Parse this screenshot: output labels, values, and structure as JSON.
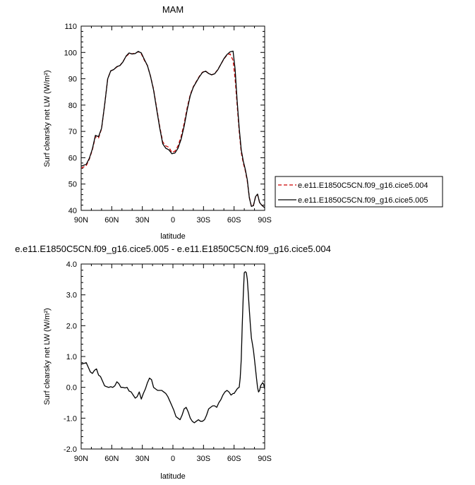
{
  "chart_data": [
    {
      "type": "line",
      "title": "MAM",
      "xlabel": "latitude",
      "ylabel": "Surf clearsky net LW (W/m²)",
      "xlim": [
        90,
        -90
      ],
      "ylim": [
        40,
        110
      ],
      "xticks": [
        90,
        60,
        30,
        0,
        -30,
        -60,
        -90
      ],
      "xtick_labels": [
        "90N",
        "60N",
        "30N",
        "0",
        "30S",
        "60S",
        "90S"
      ],
      "yticks": [
        40,
        50,
        60,
        70,
        80,
        90,
        100,
        110
      ],
      "ytick_labels": [
        "40",
        "50",
        "60",
        "70",
        "80",
        "90",
        "100",
        "110"
      ],
      "grid": false,
      "legend_position": "right",
      "series": [
        {
          "name": "e.e11.E1850C5CN.f09_g16.cice5.004",
          "color": "#cc0000",
          "dash": "dashed",
          "x": [
            90,
            85,
            82,
            79,
            76,
            73,
            70,
            67,
            64,
            61,
            58,
            55,
            52,
            49,
            46,
            43,
            40,
            37,
            34,
            31,
            28,
            25,
            22,
            19,
            16,
            13,
            10,
            7,
            4,
            1,
            -2,
            -5,
            -8,
            -11,
            -14,
            -17,
            -20,
            -23,
            -26,
            -29,
            -32,
            -35,
            -38,
            -41,
            -44,
            -47,
            -50,
            -53,
            -56,
            -59,
            -61,
            -63,
            -65,
            -67,
            -69,
            -71,
            -73,
            -75,
            -77,
            -79,
            -81,
            -83,
            -85,
            -87,
            -90
          ],
          "y": [
            56,
            57,
            59.5,
            63,
            68,
            67.5,
            71,
            80,
            90,
            93,
            93.5,
            94.5,
            95,
            96.5,
            98.5,
            99.5,
            99.5,
            99.7,
            100.3,
            99.5,
            97,
            95,
            91,
            86,
            79,
            72,
            66,
            64.5,
            64,
            62,
            62.5,
            64.5,
            68,
            73,
            79,
            84,
            87,
            89,
            91,
            92.5,
            93,
            92,
            91.5,
            92,
            93.5,
            95.5,
            97.5,
            99,
            99.5,
            97,
            90,
            80,
            70,
            62,
            58,
            55,
            51,
            45,
            41.5,
            42,
            45,
            46,
            43,
            42,
            41
          ]
        },
        {
          "name": "e.e11.E1850C5CN.f09_g16.cice5.005",
          "color": "#000000",
          "dash": "solid",
          "x": [
            90,
            85,
            82,
            79,
            76,
            73,
            70,
            67,
            64,
            61,
            58,
            55,
            52,
            49,
            46,
            43,
            40,
            37,
            34,
            31,
            28,
            25,
            22,
            19,
            16,
            13,
            10,
            7,
            4,
            1,
            -2,
            -5,
            -8,
            -11,
            -14,
            -17,
            -20,
            -23,
            -26,
            -29,
            -32,
            -35,
            -38,
            -41,
            -44,
            -47,
            -50,
            -53,
            -56,
            -59,
            -61,
            -63,
            -65,
            -67,
            -69,
            -71,
            -73,
            -75,
            -77,
            -79,
            -81,
            -83,
            -85,
            -87,
            -90
          ],
          "y": [
            56.8,
            57.5,
            59.8,
            63.4,
            68.5,
            68,
            71.2,
            80,
            90,
            93,
            93.5,
            94.6,
            95,
            96.4,
            98.6,
            99.8,
            99.4,
            99.6,
            100.4,
            99.8,
            97.3,
            95,
            91,
            85.7,
            78.5,
            71.5,
            65.3,
            63.6,
            63,
            61.5,
            61.8,
            63.6,
            67,
            72,
            78.2,
            83.6,
            86.8,
            88.8,
            90.8,
            92.4,
            92.9,
            92,
            91.5,
            91.9,
            93.4,
            95.5,
            97.6,
            99.2,
            100.2,
            100.5,
            93.7,
            81.6,
            71.3,
            63,
            58.7,
            55.5,
            51.6,
            44.7,
            41.5,
            41.8,
            45.2,
            46.2,
            43,
            42,
            41
          ]
        }
      ]
    },
    {
      "type": "line",
      "title": "e.e11.E1850C5CN.f09_g16.cice5.005 - e.e11.E1850C5CN.f09_g16.cice5.004",
      "xlabel": "latitude",
      "ylabel": "Surf clearsky net LW (W/m²)",
      "xlim": [
        90,
        -90
      ],
      "ylim": [
        -2.0,
        4.0
      ],
      "xticks": [
        90,
        60,
        30,
        0,
        -30,
        -60,
        -90
      ],
      "xtick_labels": [
        "90N",
        "60N",
        "30N",
        "0",
        "30S",
        "60S",
        "90S"
      ],
      "yticks": [
        -2.0,
        -1.0,
        0.0,
        1.0,
        2.0,
        3.0,
        4.0
      ],
      "ytick_labels": [
        "-2.0",
        "-1.0",
        "0.0",
        "1.0",
        "2.0",
        "3.0",
        "4.0"
      ],
      "grid": false,
      "series": [
        {
          "color": "#000000",
          "dash": "solid",
          "x": [
            90,
            87,
            85,
            83,
            81,
            79,
            77,
            75,
            73,
            71,
            69,
            67,
            65,
            63,
            61,
            59,
            57,
            55,
            53,
            51,
            49,
            47,
            45,
            43,
            41,
            39,
            37,
            35,
            33,
            31,
            29,
            27,
            25,
            23,
            21,
            19,
            17,
            15,
            13,
            11,
            9,
            7,
            5,
            3,
            1,
            -1,
            -3,
            -5,
            -7,
            -9,
            -11,
            -13,
            -15,
            -17,
            -19,
            -21,
            -23,
            -25,
            -27,
            -29,
            -31,
            -33,
            -35,
            -37,
            -39,
            -41,
            -43,
            -45,
            -47,
            -49,
            -51,
            -53,
            -55,
            -57,
            -59,
            -60,
            -61,
            -62,
            -63,
            -64,
            -65,
            -66,
            -67,
            -68,
            -69,
            -70,
            -71,
            -72,
            -73,
            -74,
            -75,
            -76,
            -77,
            -78,
            -79,
            -80,
            -81,
            -82,
            -83,
            -84,
            -85,
            -86,
            -87,
            -88,
            -89,
            -90
          ],
          "y": [
            0.75,
            0.78,
            0.8,
            0.65,
            0.5,
            0.45,
            0.55,
            0.6,
            0.4,
            0.35,
            0.2,
            0.05,
            0.02,
            0.0,
            0.02,
            0.0,
            0.05,
            0.18,
            0.12,
            0.0,
            0.0,
            -0.02,
            0.0,
            -0.12,
            -0.15,
            -0.25,
            -0.35,
            -0.3,
            -0.15,
            -0.38,
            -0.2,
            -0.05,
            0.15,
            0.3,
            0.25,
            0.0,
            -0.05,
            -0.1,
            -0.1,
            -0.1,
            -0.15,
            -0.2,
            -0.3,
            -0.45,
            -0.6,
            -0.75,
            -0.95,
            -1.0,
            -1.05,
            -0.9,
            -0.7,
            -0.65,
            -0.8,
            -1.0,
            -1.1,
            -1.15,
            -1.1,
            -1.05,
            -1.1,
            -1.1,
            -1.05,
            -0.9,
            -0.7,
            -0.65,
            -0.6,
            -0.6,
            -0.65,
            -0.5,
            -0.4,
            -0.25,
            -0.15,
            -0.1,
            -0.15,
            -0.25,
            -0.2,
            -0.2,
            -0.15,
            -0.1,
            -0.05,
            -0.02,
            0.0,
            0.3,
            0.9,
            2.0,
            3.0,
            3.72,
            3.75,
            3.72,
            3.5,
            3.0,
            2.5,
            2.0,
            1.6,
            1.4,
            1.2,
            0.9,
            0.6,
            0.3,
            0.0,
            -0.15,
            -0.1,
            0.05,
            0.1,
            0.15,
            0.1,
            -0.05
          ]
        }
      ]
    }
  ]
}
